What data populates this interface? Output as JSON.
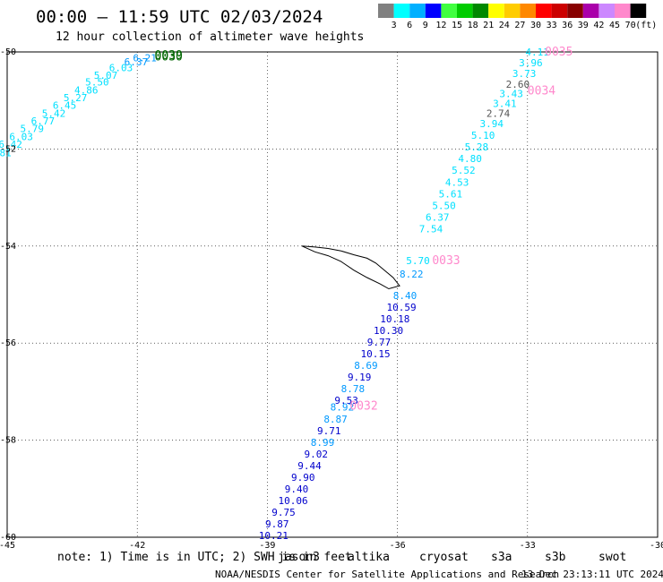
{
  "title": "00:00 – 11:59 UTC 02/03/2024",
  "subtitle": "12 hour collection of altimeter wave heights",
  "legend": {
    "unit": "(ft)",
    "bins": [
      {
        "label": "",
        "color": "#808080"
      },
      {
        "label": "3",
        "color": "#00ffff"
      },
      {
        "label": "6",
        "color": "#00b0ff"
      },
      {
        "label": "9",
        "color": "#0000ff"
      },
      {
        "label": "12",
        "color": "#40ff40"
      },
      {
        "label": "15",
        "color": "#00cc00"
      },
      {
        "label": "18",
        "color": "#008800"
      },
      {
        "label": "21",
        "color": "#ffff00"
      },
      {
        "label": "24",
        "color": "#ffcc00"
      },
      {
        "label": "27",
        "color": "#ff8800"
      },
      {
        "label": "30",
        "color": "#ff0000"
      },
      {
        "label": "33",
        "color": "#cc0000"
      },
      {
        "label": "36",
        "color": "#880000"
      },
      {
        "label": "39",
        "color": "#aa00aa"
      },
      {
        "label": "42",
        "color": "#cc88ff"
      },
      {
        "label": "45",
        "color": "#ff88cc"
      },
      {
        "label": "70",
        "color": "#000000"
      }
    ]
  },
  "map": {
    "lon_range": [
      -45,
      -30
    ],
    "lat_range": [
      -60,
      -50
    ],
    "lon_ticks": [
      "-45",
      "-42",
      "-39",
      "-36",
      "-33",
      "-30"
    ],
    "lon_tick_values": [
      -45,
      -42,
      -39,
      -36,
      -33,
      -30
    ],
    "lat_ticks": [
      "-50",
      "-52",
      "-54",
      "-56",
      "-58",
      "-60"
    ],
    "lat_tick_values": [
      -50,
      -52,
      -54,
      -56,
      -58,
      -60
    ]
  },
  "swh_color_scale": {
    "cyan": "#00e0ff",
    "lightblue": "#0099ff",
    "blue": "#0000cc",
    "gray": "#555555"
  },
  "tracks": [
    {
      "name": "track-west",
      "pass_labels": [
        {
          "text": "0030",
          "lon": -41.6,
          "lat": -50.1,
          "color": "#006600"
        },
        {
          "text": "0039",
          "lon": -41.6,
          "lat": -50.07,
          "color": "#006600"
        }
      ],
      "points": [
        {
          "v": "6.21",
          "lon": -42.1,
          "lat": -50.12,
          "c": "lightblue"
        },
        {
          "v": "6.37",
          "lon": -42.3,
          "lat": -50.2,
          "c": "lightblue"
        },
        {
          "v": "6.03",
          "lon": -42.65,
          "lat": -50.32,
          "c": "cyan"
        },
        {
          "v": "5.07",
          "lon": -43.0,
          "lat": -50.48,
          "c": "cyan"
        },
        {
          "v": "5.50",
          "lon": -43.2,
          "lat": -50.62,
          "c": "cyan"
        },
        {
          "v": "4.86",
          "lon": -43.45,
          "lat": -50.78,
          "c": "cyan"
        },
        {
          "v": "5.27",
          "lon": -43.7,
          "lat": -50.94,
          "c": "cyan"
        },
        {
          "v": "6.45",
          "lon": -43.95,
          "lat": -51.1,
          "c": "cyan"
        },
        {
          "v": "5.42",
          "lon": -44.2,
          "lat": -51.26,
          "c": "cyan"
        },
        {
          "v": "6.77",
          "lon": -44.45,
          "lat": -51.42,
          "c": "cyan"
        },
        {
          "v": "5.79",
          "lon": -44.7,
          "lat": -51.58,
          "c": "cyan"
        },
        {
          "v": "6.03",
          "lon": -44.95,
          "lat": -51.74,
          "c": "cyan"
        },
        {
          "v": "6.42",
          "lon": -45.2,
          "lat": -51.9,
          "c": "cyan"
        },
        {
          "v": "5.81",
          "lon": -45.45,
          "lat": -52.08,
          "c": "cyan"
        }
      ]
    },
    {
      "name": "track-east",
      "pass_labels": [
        {
          "text": "0035",
          "lon": -32.6,
          "lat": -50.0,
          "color": "#ff88cc"
        },
        {
          "text": "0034",
          "lon": -33.0,
          "lat": -50.8,
          "color": "#ff88cc"
        },
        {
          "text": "0033",
          "lon": -35.2,
          "lat": -54.3,
          "color": "#ff88cc"
        },
        {
          "text": "0032",
          "lon": -37.1,
          "lat": -57.3,
          "color": "#ff88cc"
        }
      ],
      "points": [
        {
          "v": "4.11",
          "lon": -33.05,
          "lat": -50.0,
          "c": "cyan"
        },
        {
          "v": "3.96",
          "lon": -33.2,
          "lat": -50.22,
          "c": "cyan"
        },
        {
          "v": "3.73",
          "lon": -33.35,
          "lat": -50.44,
          "c": "cyan"
        },
        {
          "v": "2.60",
          "lon": -33.5,
          "lat": -50.66,
          "c": "gray"
        },
        {
          "v": "3.43",
          "lon": -33.65,
          "lat": -50.86,
          "c": "cyan"
        },
        {
          "v": "3.41",
          "lon": -33.8,
          "lat": -51.06,
          "c": "cyan"
        },
        {
          "v": "2.74",
          "lon": -33.95,
          "lat": -51.26,
          "c": "gray"
        },
        {
          "v": "3.94",
          "lon": -34.1,
          "lat": -51.48,
          "c": "cyan"
        },
        {
          "v": "5.10",
          "lon": -34.3,
          "lat": -51.72,
          "c": "cyan"
        },
        {
          "v": "5.28",
          "lon": -34.45,
          "lat": -51.96,
          "c": "cyan"
        },
        {
          "v": "4.80",
          "lon": -34.6,
          "lat": -52.2,
          "c": "cyan"
        },
        {
          "v": "5.52",
          "lon": -34.75,
          "lat": -52.44,
          "c": "cyan"
        },
        {
          "v": "4.53",
          "lon": -34.9,
          "lat": -52.68,
          "c": "cyan"
        },
        {
          "v": "5.61",
          "lon": -35.05,
          "lat": -52.92,
          "c": "cyan"
        },
        {
          "v": "5.50",
          "lon": -35.2,
          "lat": -53.16,
          "c": "cyan"
        },
        {
          "v": "6.37",
          "lon": -35.35,
          "lat": -53.4,
          "c": "cyan"
        },
        {
          "v": "7.54",
          "lon": -35.5,
          "lat": -53.64,
          "c": "cyan"
        },
        {
          "v": "5.70",
          "lon": -35.8,
          "lat": -54.3,
          "c": "cyan"
        },
        {
          "v": "8.22",
          "lon": -35.95,
          "lat": -54.58,
          "c": "lightblue"
        },
        {
          "v": "8.40",
          "lon": -36.1,
          "lat": -55.02,
          "c": "lightblue"
        },
        {
          "v": "10.59",
          "lon": -36.25,
          "lat": -55.26,
          "c": "blue"
        },
        {
          "v": "10.18",
          "lon": -36.4,
          "lat": -55.5,
          "c": "blue"
        },
        {
          "v": "10.30",
          "lon": -36.55,
          "lat": -55.74,
          "c": "blue"
        },
        {
          "v": "9.77",
          "lon": -36.7,
          "lat": -55.98,
          "c": "blue"
        },
        {
          "v": "10.15",
          "lon": -36.85,
          "lat": -56.22,
          "c": "blue"
        },
        {
          "v": "8.69",
          "lon": -37.0,
          "lat": -56.46,
          "c": "lightblue"
        },
        {
          "v": "9.19",
          "lon": -37.15,
          "lat": -56.7,
          "c": "blue"
        },
        {
          "v": "8.78",
          "lon": -37.3,
          "lat": -56.94,
          "c": "lightblue"
        },
        {
          "v": "9.53",
          "lon": -37.45,
          "lat": -57.18,
          "c": "blue"
        },
        {
          "v": "8.92",
          "lon": -37.55,
          "lat": -57.32,
          "c": "lightblue"
        },
        {
          "v": "8.87",
          "lon": -37.7,
          "lat": -57.56,
          "c": "lightblue"
        },
        {
          "v": "9.71",
          "lon": -37.85,
          "lat": -57.8,
          "c": "blue"
        },
        {
          "v": "8.99",
          "lon": -38.0,
          "lat": -58.04,
          "c": "lightblue"
        },
        {
          "v": "9.02",
          "lon": -38.15,
          "lat": -58.28,
          "c": "blue"
        },
        {
          "v": "9.44",
          "lon": -38.3,
          "lat": -58.52,
          "c": "blue"
        },
        {
          "v": "9.90",
          "lon": -38.45,
          "lat": -58.76,
          "c": "blue"
        },
        {
          "v": "9.40",
          "lon": -38.6,
          "lat": -59.0,
          "c": "blue"
        },
        {
          "v": "10.06",
          "lon": -38.75,
          "lat": -59.24,
          "c": "blue"
        },
        {
          "v": "9.75",
          "lon": -38.9,
          "lat": -59.48,
          "c": "blue"
        },
        {
          "v": "9.87",
          "lon": -39.05,
          "lat": -59.72,
          "c": "blue"
        },
        {
          "v": "10.21",
          "lon": -39.2,
          "lat": -59.96,
          "c": "blue"
        }
      ]
    }
  ],
  "coastline": [
    [
      -38.2,
      -54.0
    ],
    [
      -37.9,
      -54.02
    ],
    [
      -37.6,
      -54.05
    ],
    [
      -37.3,
      -54.1
    ],
    [
      -37.0,
      -54.18
    ],
    [
      -36.7,
      -54.25
    ],
    [
      -36.5,
      -54.35
    ],
    [
      -36.3,
      -54.5
    ],
    [
      -36.1,
      -54.65
    ],
    [
      -35.95,
      -54.82
    ],
    [
      -36.2,
      -54.88
    ],
    [
      -36.4,
      -54.78
    ],
    [
      -36.7,
      -54.65
    ],
    [
      -37.0,
      -54.5
    ],
    [
      -37.3,
      -54.32
    ],
    [
      -37.6,
      -54.2
    ],
    [
      -37.9,
      -54.12
    ],
    [
      -38.2,
      -54.0
    ]
  ],
  "note": "note: 1) Time is in UTC; 2) SWH is in feet",
  "satellites": [
    {
      "name": "jason3",
      "color": "#006600"
    },
    {
      "name": "altika",
      "color": "#ff8800"
    },
    {
      "name": "cryosat",
      "color": "#ff0000"
    },
    {
      "name": "s3a",
      "color": "#880000"
    },
    {
      "name": "s3b",
      "color": "#aaaaff"
    },
    {
      "name": "swot",
      "color": "#ff99cc"
    }
  ],
  "credit_left": "NOAA/NESDIS Center for Satellite Applications and Research",
  "credit_right": "13 Dec 23:13:11 UTC 2024"
}
